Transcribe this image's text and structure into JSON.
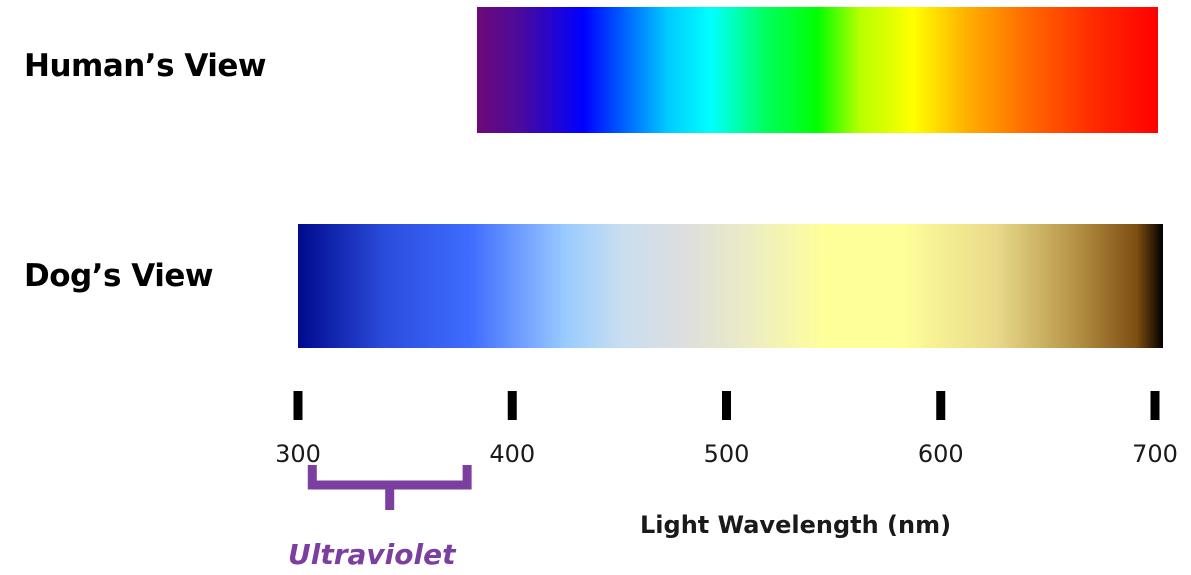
{
  "rows": {
    "human": {
      "label": "Human’s View"
    },
    "dog": {
      "label": "Dog’s View"
    }
  },
  "axis": {
    "title": "Light Wavelength (nm)",
    "unit": "nm",
    "range": [
      300,
      700
    ],
    "ticks": [
      300,
      400,
      500,
      600,
      700
    ]
  },
  "spectra": {
    "human": {
      "range_nm": [
        380,
        700
      ],
      "stops": [
        {
          "nm": 380,
          "color": "#6e0a78"
        },
        {
          "nm": 400,
          "color": "#4b0a9b"
        },
        {
          "nm": 430,
          "color": "#0000ff"
        },
        {
          "nm": 470,
          "color": "#00ccff"
        },
        {
          "nm": 490,
          "color": "#00ffff"
        },
        {
          "nm": 515,
          "color": "#00ff60"
        },
        {
          "nm": 540,
          "color": "#00ff00"
        },
        {
          "nm": 560,
          "color": "#b8ff00"
        },
        {
          "nm": 585,
          "color": "#ffff00"
        },
        {
          "nm": 610,
          "color": "#ffb000"
        },
        {
          "nm": 640,
          "color": "#ff6600"
        },
        {
          "nm": 670,
          "color": "#ff2a00"
        },
        {
          "nm": 700,
          "color": "#ff0000"
        }
      ]
    },
    "dog": {
      "range_nm": [
        300,
        702
      ],
      "stops": [
        {
          "nm": 300,
          "color": "#000a8c"
        },
        {
          "nm": 340,
          "color": "#2a4bdb"
        },
        {
          "nm": 380,
          "color": "#3f6cff"
        },
        {
          "nm": 425,
          "color": "#9bccff"
        },
        {
          "nm": 450,
          "color": "#c8def0"
        },
        {
          "nm": 480,
          "color": "#dedede"
        },
        {
          "nm": 510,
          "color": "#ececc4"
        },
        {
          "nm": 545,
          "color": "#ffff99"
        },
        {
          "nm": 580,
          "color": "#ffff9a"
        },
        {
          "nm": 625,
          "color": "#e8d98a"
        },
        {
          "nm": 660,
          "color": "#b79548"
        },
        {
          "nm": 690,
          "color": "#7d4e10"
        },
        {
          "nm": 702,
          "color": "#000000"
        }
      ]
    }
  },
  "ultraviolet": {
    "label": "Ultraviolet",
    "range_nm": [
      302,
      378
    ],
    "color": "#7b3fa0"
  }
}
